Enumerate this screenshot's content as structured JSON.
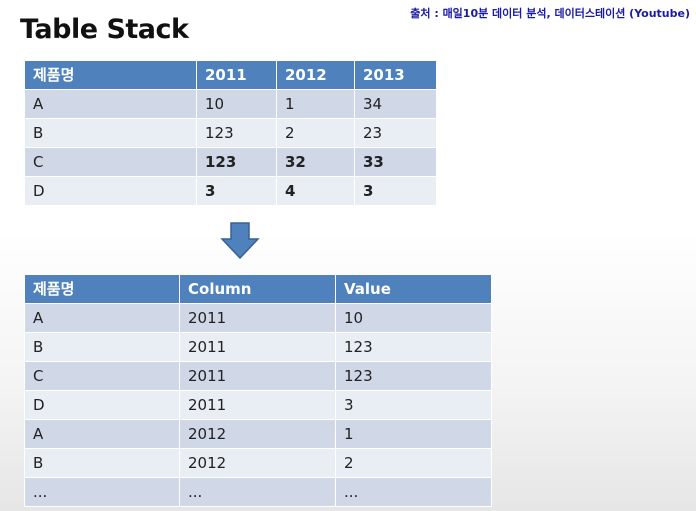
{
  "source": "출처 : 매일10분 데이터 분석, 데이터스테이션 (Youtube)",
  "title": "Table Stack",
  "table1": {
    "headers": [
      "제품명",
      "2011",
      "2012",
      "2013"
    ],
    "rows": [
      {
        "cells": [
          "A",
          "10",
          "1",
          "34"
        ],
        "bold": [
          false,
          false,
          false,
          false
        ]
      },
      {
        "cells": [
          "B",
          "123",
          "2",
          "23"
        ],
        "bold": [
          false,
          false,
          false,
          false
        ]
      },
      {
        "cells": [
          "C",
          "123",
          "32",
          "33"
        ],
        "bold": [
          false,
          true,
          true,
          true
        ]
      },
      {
        "cells": [
          "D",
          "3",
          "4",
          "3"
        ],
        "bold": [
          false,
          true,
          true,
          true
        ]
      }
    ]
  },
  "arrow_icon": "down-arrow-icon",
  "accent_color": "#4f81bd",
  "table2": {
    "headers": [
      "제품명",
      "Column",
      "Value"
    ],
    "rows": [
      [
        "A",
        "2011",
        "10"
      ],
      [
        "B",
        "2011",
        "123"
      ],
      [
        "C",
        "2011",
        "123"
      ],
      [
        "D",
        "2011",
        "3"
      ],
      [
        "A",
        "2012",
        "1"
      ],
      [
        "B",
        "2012",
        "2"
      ],
      [
        "...",
        "...",
        "..."
      ]
    ]
  }
}
